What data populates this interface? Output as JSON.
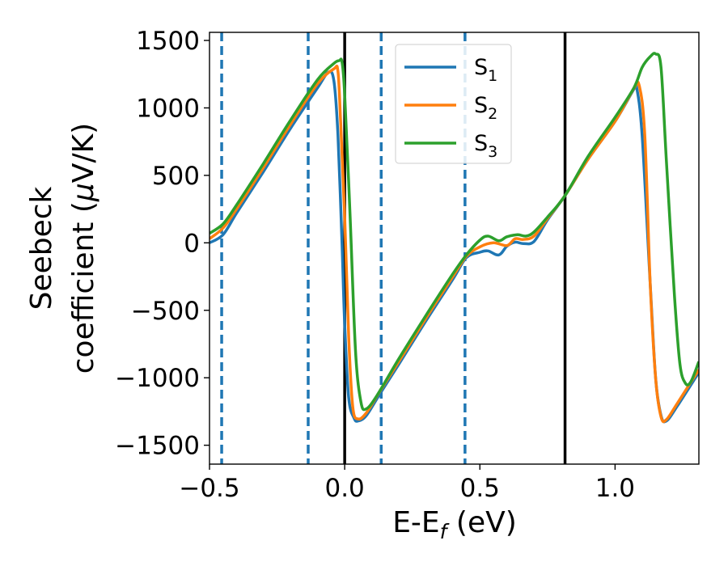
{
  "chart_data": {
    "type": "line",
    "title": "",
    "xlabel_main": "E-E",
    "xlabel_sub": "f",
    "xlabel_unit": " (eV)",
    "ylabel_line1": "Seebeck",
    "ylabel_line2": "coefficient  (",
    "ylabel_mu": "μ",
    "ylabel_unit": "V/K)",
    "xlim": [
      -0.5,
      1.31
    ],
    "ylim": [
      -1640,
      1560
    ],
    "xticks": [
      {
        "value": -0.5,
        "label": "−0.5"
      },
      {
        "value": 0.0,
        "label": "0.0"
      },
      {
        "value": 0.5,
        "label": "0.5"
      },
      {
        "value": 1.0,
        "label": "1.0"
      }
    ],
    "yticks": [
      {
        "value": 1500,
        "label": "1500"
      },
      {
        "value": 1000,
        "label": "1000"
      },
      {
        "value": 500,
        "label": "500"
      },
      {
        "value": 0,
        "label": "0"
      },
      {
        "value": -500,
        "label": "−500"
      },
      {
        "value": -1000,
        "label": "−1000"
      },
      {
        "value": -1500,
        "label": "−1500"
      }
    ],
    "vlines_solid": [
      0.0,
      0.815
    ],
    "vlines_dashed": [
      -0.455,
      -0.135,
      0.135,
      0.445
    ],
    "vline_solid_color": "#000000",
    "vline_dashed_color": "#1f77b4",
    "legend_position": "top-right",
    "series": [
      {
        "name": "S",
        "sub": "1",
        "color": "#1f77b4",
        "points": [
          [
            -0.5,
            0
          ],
          [
            -0.45,
            60
          ],
          [
            -0.4,
            220
          ],
          [
            -0.3,
            530
          ],
          [
            -0.2,
            850
          ],
          [
            -0.1,
            1150
          ],
          [
            -0.06,
            1265
          ],
          [
            -0.04,
            1200
          ],
          [
            -0.025,
            800
          ],
          [
            -0.01,
            0
          ],
          [
            0.0,
            -600
          ],
          [
            0.015,
            -1150
          ],
          [
            0.035,
            -1300
          ],
          [
            0.05,
            -1320
          ],
          [
            0.08,
            -1280
          ],
          [
            0.13,
            -1120
          ],
          [
            0.2,
            -900
          ],
          [
            0.3,
            -580
          ],
          [
            0.4,
            -270
          ],
          [
            0.45,
            -110
          ],
          [
            0.5,
            -70
          ],
          [
            0.53,
            -60
          ],
          [
            0.57,
            -90
          ],
          [
            0.6,
            -25
          ],
          [
            0.63,
            5
          ],
          [
            0.66,
            -5
          ],
          [
            0.7,
            10
          ],
          [
            0.75,
            170
          ],
          [
            0.815,
            350
          ],
          [
            0.9,
            620
          ],
          [
            1.0,
            900
          ],
          [
            1.07,
            1140
          ],
          [
            1.08,
            1150
          ],
          [
            1.1,
            800
          ],
          [
            1.13,
            -300
          ],
          [
            1.15,
            -1000
          ],
          [
            1.17,
            -1280
          ],
          [
            1.19,
            -1320
          ],
          [
            1.23,
            -1210
          ],
          [
            1.31,
            -960
          ]
        ]
      },
      {
        "name": "S",
        "sub": "2",
        "color": "#ff7f0e",
        "points": [
          [
            -0.5,
            30
          ],
          [
            -0.45,
            110
          ],
          [
            -0.4,
            250
          ],
          [
            -0.3,
            560
          ],
          [
            -0.2,
            880
          ],
          [
            -0.1,
            1180
          ],
          [
            -0.04,
            1290
          ],
          [
            -0.025,
            1270
          ],
          [
            -0.015,
            900
          ],
          [
            0.0,
            200
          ],
          [
            0.015,
            -700
          ],
          [
            0.03,
            -1220
          ],
          [
            0.05,
            -1305
          ],
          [
            0.08,
            -1260
          ],
          [
            0.13,
            -1100
          ],
          [
            0.2,
            -880
          ],
          [
            0.3,
            -560
          ],
          [
            0.4,
            -250
          ],
          [
            0.45,
            -100
          ],
          [
            0.5,
            -30
          ],
          [
            0.55,
            0
          ],
          [
            0.6,
            -20
          ],
          [
            0.63,
            30
          ],
          [
            0.66,
            25
          ],
          [
            0.7,
            50
          ],
          [
            0.75,
            180
          ],
          [
            0.815,
            350
          ],
          [
            0.9,
            620
          ],
          [
            1.0,
            900
          ],
          [
            1.07,
            1145
          ],
          [
            1.09,
            1160
          ],
          [
            1.11,
            800
          ],
          [
            1.13,
            -300
          ],
          [
            1.15,
            -1000
          ],
          [
            1.17,
            -1290
          ],
          [
            1.19,
            -1310
          ],
          [
            1.23,
            -1190
          ],
          [
            1.31,
            -940
          ]
        ]
      },
      {
        "name": "S",
        "sub": "3",
        "color": "#2ca02c",
        "points": [
          [
            -0.5,
            70
          ],
          [
            -0.45,
            140
          ],
          [
            -0.4,
            280
          ],
          [
            -0.3,
            590
          ],
          [
            -0.2,
            910
          ],
          [
            -0.1,
            1210
          ],
          [
            -0.04,
            1330
          ],
          [
            -0.02,
            1350
          ],
          [
            -0.01,
            1340
          ],
          [
            0.0,
            1100
          ],
          [
            0.02,
            200
          ],
          [
            0.04,
            -800
          ],
          [
            0.06,
            -1180
          ],
          [
            0.08,
            -1230
          ],
          [
            0.12,
            -1130
          ],
          [
            0.2,
            -860
          ],
          [
            0.3,
            -540
          ],
          [
            0.4,
            -230
          ],
          [
            0.45,
            -90
          ],
          [
            0.5,
            20
          ],
          [
            0.53,
            50
          ],
          [
            0.57,
            15
          ],
          [
            0.6,
            45
          ],
          [
            0.64,
            60
          ],
          [
            0.67,
            50
          ],
          [
            0.7,
            80
          ],
          [
            0.75,
            190
          ],
          [
            0.815,
            350
          ],
          [
            0.9,
            640
          ],
          [
            1.0,
            930
          ],
          [
            1.07,
            1150
          ],
          [
            1.1,
            1300
          ],
          [
            1.13,
            1380
          ],
          [
            1.15,
            1400
          ],
          [
            1.17,
            1300
          ],
          [
            1.19,
            600
          ],
          [
            1.22,
            -400
          ],
          [
            1.24,
            -900
          ],
          [
            1.26,
            -1040
          ],
          [
            1.28,
            -1030
          ],
          [
            1.31,
            -880
          ]
        ]
      }
    ]
  }
}
